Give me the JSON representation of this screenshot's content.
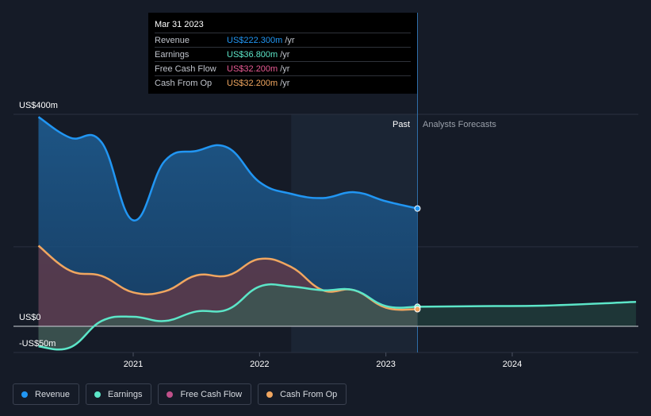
{
  "tooltip": {
    "date": "Mar 31 2023",
    "rows": [
      {
        "label": "Revenue",
        "value": "US$222.300m",
        "unit": "/yr",
        "color": "#2196f3"
      },
      {
        "label": "Earnings",
        "value": "US$36.800m",
        "unit": "/yr",
        "color": "#5ce6c8"
      },
      {
        "label": "Free Cash Flow",
        "value": "US$32.200m",
        "unit": "/yr",
        "color": "#e85a94"
      },
      {
        "label": "Cash From Op",
        "value": "US$32.200m",
        "unit": "/yr",
        "color": "#f0a660"
      }
    ]
  },
  "legend": [
    {
      "label": "Revenue",
      "color": "#2196f3"
    },
    {
      "label": "Earnings",
      "color": "#5ce6c8"
    },
    {
      "label": "Free Cash Flow",
      "color": "#c0508a"
    },
    {
      "label": "Cash From Op",
      "color": "#f0a660"
    }
  ],
  "chart_data": {
    "type": "line",
    "title": "",
    "xlabel": "",
    "ylabel": "",
    "ylim": [
      -50,
      400
    ],
    "xlim": [
      2020.25,
      2024.98
    ],
    "y_tick_labels": [
      "US$400m",
      "US$0",
      "-US$50m"
    ],
    "x_tick_labels": [
      "2021",
      "2022",
      "2023",
      "2024"
    ],
    "past_label": "Past",
    "forecast_label": "Analysts Forecasts",
    "past_end": 2023.25,
    "series": [
      {
        "name": "Revenue",
        "color": "#2196f3",
        "x": [
          2020.25,
          2020.5,
          2020.75,
          2021.0,
          2021.25,
          2021.5,
          2021.75,
          2022.0,
          2022.25,
          2022.5,
          2022.75,
          2023.0,
          2023.25
        ],
        "values": [
          395,
          356,
          347,
          200,
          312,
          331,
          337,
          272,
          250,
          242,
          253,
          236,
          222.3
        ]
      },
      {
        "name": "Cash From Op",
        "color": "#f0a660",
        "x": [
          2020.25,
          2020.5,
          2020.75,
          2021.0,
          2021.25,
          2021.5,
          2021.75,
          2022.0,
          2022.25,
          2022.5,
          2022.75,
          2023.0,
          2023.25
        ],
        "values": [
          152,
          105,
          95,
          64,
          66,
          96,
          96,
          127,
          112,
          68,
          68,
          35,
          32.2
        ]
      },
      {
        "name": "Free Cash Flow",
        "color": "#e85a94",
        "x": [
          2020.25,
          2020.5,
          2020.75,
          2021.0,
          2021.25,
          2021.5,
          2021.75,
          2022.0,
          2022.25,
          2022.5,
          2022.75,
          2023.0,
          2023.25
        ],
        "values": [
          152,
          105,
          95,
          64,
          66,
          96,
          96,
          127,
          112,
          68,
          68,
          35,
          32.2
        ]
      },
      {
        "name": "Earnings",
        "color": "#5ce6c8",
        "x": [
          2020.25,
          2020.5,
          2020.75,
          2021.0,
          2021.25,
          2021.5,
          2021.75,
          2022.0,
          2022.25,
          2022.5,
          2022.75,
          2023.0,
          2023.25
        ],
        "values": [
          -38,
          -40,
          10,
          18,
          10,
          28,
          32,
          75,
          75,
          68,
          68,
          38,
          36.8
        ]
      },
      {
        "name": "Earnings Forecast",
        "color": "#5ce6c8",
        "x": [
          2023.25,
          2023.75,
          2024.25,
          2024.98
        ],
        "values": [
          36.8,
          38,
          39,
          46
        ]
      }
    ]
  }
}
